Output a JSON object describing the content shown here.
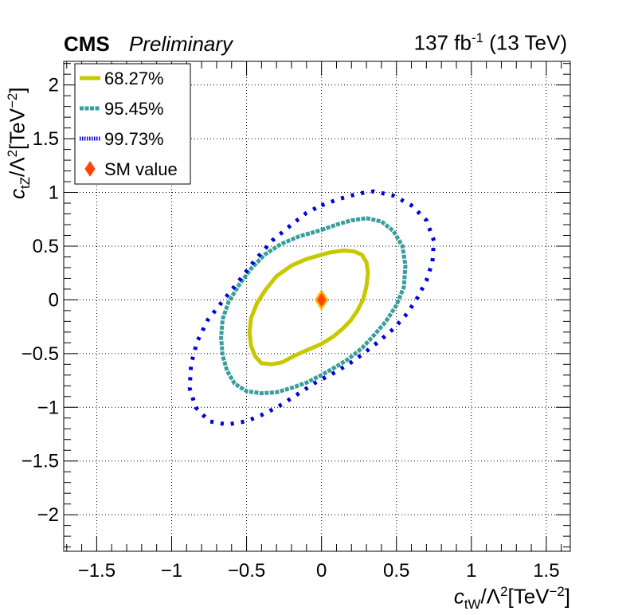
{
  "header": {
    "experiment": "CMS",
    "status": "Preliminary",
    "lumi_base": "137 fb",
    "lumi_exp": "-1",
    "lumi_energy": " (13 TeV)"
  },
  "axes": {
    "x_main": "c",
    "x_sub": "tW",
    "x_rest": "/Λ",
    "x_sq": "2",
    "x_unit": "[TeV",
    "x_unit_exp": "−2",
    "x_close": "]",
    "y_main": "c",
    "y_sub": "tZ",
    "y_rest": "/Λ",
    "y_sq": "2",
    "y_unit": "[TeV",
    "y_unit_exp": "−2",
    "y_close": "]"
  },
  "chart_data": {
    "type": "scatter",
    "xlabel": "c_tW/Λ^2[TeV^-2]",
    "ylabel": "c_tZ/Λ^2[TeV^-2]",
    "xlim": [
      -1.72,
      1.66
    ],
    "ylim": [
      -2.34,
      2.22
    ],
    "xticks": [
      -1.5,
      -1,
      -0.5,
      0,
      0.5,
      1,
      1.5
    ],
    "xtick_labels": [
      "−1.5",
      "−1",
      "−0.5",
      "0",
      "0.5",
      "1",
      "1.5"
    ],
    "yticks": [
      -2,
      -1.5,
      -1,
      -0.5,
      0,
      0.5,
      1,
      1.5,
      2
    ],
    "ytick_labels": [
      "−2",
      "−1.5",
      "−1",
      "−0.5",
      "0",
      "0.5",
      "1",
      "1.5",
      "2"
    ],
    "grid": true,
    "legend_position": "top-left",
    "legend": [
      "68.27%",
      "95.45%",
      "99.73%",
      "SM value"
    ],
    "colors": {
      "c68": "#c8c800",
      "c95": "#3a9e9c",
      "c99": "#0000e0",
      "sm_fill": "#ff4500",
      "sm_outline": "#ffb000"
    },
    "series": [
      {
        "name": "68.27%",
        "kind": "contour",
        "x": [
          0.05,
          0.15,
          0.22,
          0.27,
          0.3,
          0.31,
          0.3,
          0.28,
          0.24,
          0.19,
          0.14,
          0.08,
          0.0,
          -0.05,
          -0.1,
          -0.18,
          -0.26,
          -0.33,
          -0.4,
          -0.44,
          -0.47,
          -0.48,
          -0.47,
          -0.43,
          -0.37,
          -0.3,
          -0.2,
          -0.1,
          0.0,
          0.05
        ],
        "y": [
          0.44,
          0.46,
          0.45,
          0.42,
          0.35,
          0.25,
          0.13,
          0.01,
          -0.1,
          -0.2,
          -0.27,
          -0.34,
          -0.41,
          -0.44,
          -0.47,
          -0.52,
          -0.58,
          -0.6,
          -0.59,
          -0.53,
          -0.43,
          -0.3,
          -0.17,
          -0.03,
          0.1,
          0.22,
          0.32,
          0.38,
          0.42,
          0.44
        ]
      },
      {
        "name": "95.45%",
        "kind": "contour",
        "x": [
          0.0,
          0.1,
          0.2,
          0.3,
          0.4,
          0.48,
          0.54,
          0.56,
          0.55,
          0.5,
          0.43,
          0.35,
          0.27,
          0.18,
          0.1,
          0.0,
          -0.1,
          -0.2,
          -0.3,
          -0.4,
          -0.5,
          -0.58,
          -0.63,
          -0.66,
          -0.67,
          -0.66,
          -0.62,
          -0.55,
          -0.47,
          -0.38,
          -0.27,
          -0.15,
          -0.05,
          0.0
        ],
        "y": [
          0.65,
          0.7,
          0.74,
          0.76,
          0.73,
          0.64,
          0.5,
          0.32,
          0.12,
          -0.05,
          -0.2,
          -0.33,
          -0.45,
          -0.55,
          -0.62,
          -0.7,
          -0.77,
          -0.82,
          -0.86,
          -0.87,
          -0.85,
          -0.78,
          -0.66,
          -0.52,
          -0.35,
          -0.18,
          -0.02,
          0.14,
          0.29,
          0.42,
          0.52,
          0.59,
          0.63,
          0.65
        ]
      },
      {
        "name": "99.73%",
        "kind": "contour",
        "x": [
          0.0,
          0.12,
          0.25,
          0.35,
          0.48,
          0.6,
          0.7,
          0.75,
          0.74,
          0.7,
          0.64,
          0.57,
          0.48,
          0.38,
          0.28,
          0.18,
          0.07,
          -0.04,
          -0.15,
          -0.26,
          -0.38,
          -0.5,
          -0.63,
          -0.75,
          -0.84,
          -0.88,
          -0.87,
          -0.83,
          -0.76,
          -0.67,
          -0.56,
          -0.45,
          -0.33,
          -0.2,
          -0.1,
          0.0
        ],
        "y": [
          0.88,
          0.94,
          0.99,
          1.01,
          0.97,
          0.88,
          0.74,
          0.55,
          0.35,
          0.18,
          0.02,
          -0.13,
          -0.27,
          -0.39,
          -0.5,
          -0.6,
          -0.69,
          -0.77,
          -0.87,
          -0.97,
          -1.06,
          -1.13,
          -1.16,
          -1.13,
          -1.0,
          -0.82,
          -0.6,
          -0.39,
          -0.19,
          -0.03,
          0.16,
          0.36,
          0.55,
          0.7,
          0.81,
          0.88
        ]
      },
      {
        "name": "SM value",
        "kind": "point",
        "x": [
          0
        ],
        "y": [
          0
        ]
      }
    ]
  }
}
